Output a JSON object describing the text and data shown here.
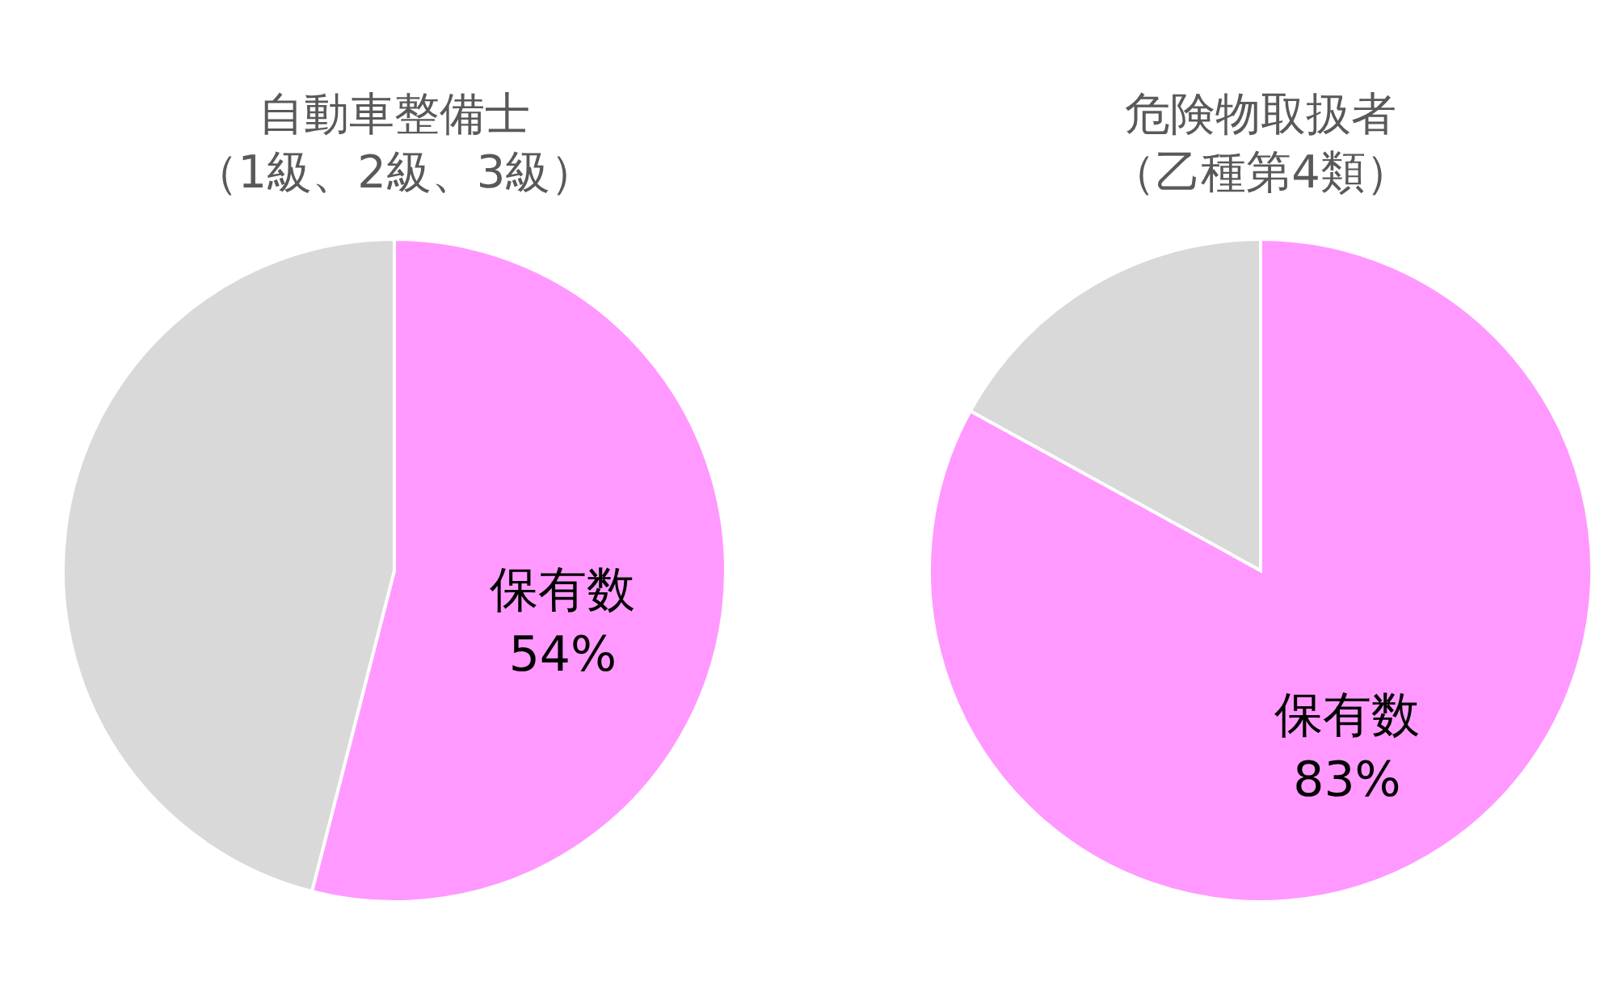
{
  "chart_data": [
    {
      "type": "pie",
      "title": "自動車整備士（1級、2級、3級）",
      "categories": [
        "保有数",
        null
      ],
      "values": [
        54,
        46
      ],
      "colors": [
        "#ff99ff",
        "#d9d9d9"
      ],
      "value_labels": [
        "54%",
        null
      ]
    },
    {
      "type": "pie",
      "title": "危険物取扱者（乙種第4類）",
      "categories": [
        "保有数",
        null
      ],
      "values": [
        83,
        17
      ],
      "colors": [
        "#ff99ff",
        "#d9d9d9"
      ],
      "value_labels": [
        "83%",
        null
      ]
    }
  ]
}
